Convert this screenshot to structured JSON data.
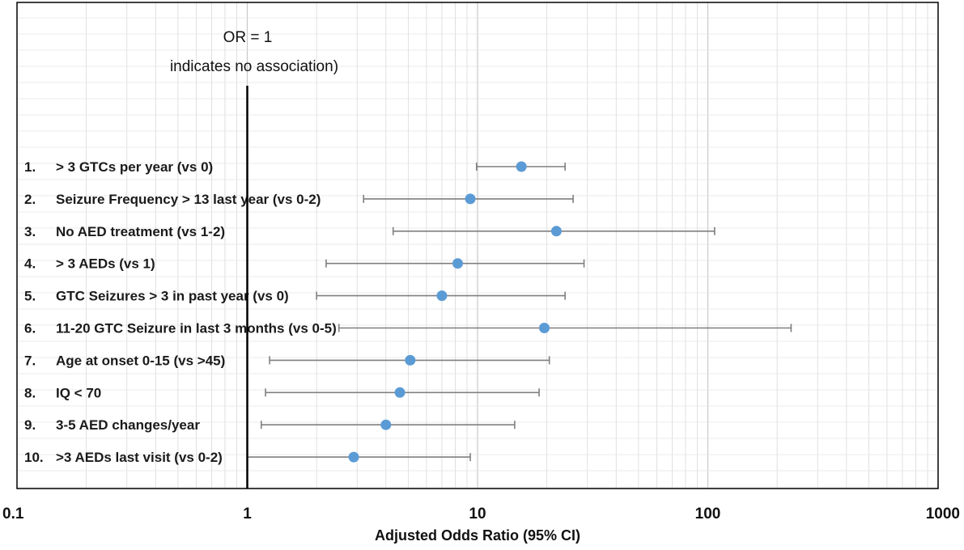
{
  "chart_data": {
    "type": "forest",
    "title": "",
    "xlabel": "Adjusted Odds Ratio (95% CI)",
    "xscale": "log",
    "xlim": [
      0.1,
      1000
    ],
    "xticks": [
      "0.1",
      "1",
      "10",
      "100",
      "1000"
    ],
    "reference_line": {
      "value": 1,
      "note_line1": "OR = 1",
      "note_line2": "indicates no association)"
    },
    "rows": [
      {
        "num": "1.",
        "label": "> 3 GTCs per year (vs 0)",
        "or": 15.5,
        "lower": 9.9,
        "upper": 24
      },
      {
        "num": "2.",
        "label": "Seizure Frequency > 13 last year (vs 0-2)",
        "or": 9.3,
        "lower": 3.2,
        "upper": 26
      },
      {
        "num": "3.",
        "label": "No AED treatment (vs 1-2)",
        "or": 22,
        "lower": 4.3,
        "upper": 107
      },
      {
        "num": "4.",
        "label": "> 3 AEDs (vs 1)",
        "or": 8.2,
        "lower": 2.2,
        "upper": 29
      },
      {
        "num": "5.",
        "label": "GTC Seizures > 3 in past year (vs 0)",
        "or": 7.0,
        "lower": 2.0,
        "upper": 24
      },
      {
        "num": "6.",
        "label": "11-20 GTC Seizure in last 3 months (vs 0-5)",
        "or": 19.5,
        "lower": 2.5,
        "upper": 230
      },
      {
        "num": "7.",
        "label": "Age at onset 0-15 (vs >45)",
        "or": 5.1,
        "lower": 1.25,
        "upper": 20.5
      },
      {
        "num": "8.",
        "label": "IQ < 70",
        "or": 4.6,
        "lower": 1.2,
        "upper": 18.5
      },
      {
        "num": "9.",
        "label": "3-5 AED changes/year",
        "or": 4.0,
        "lower": 1.15,
        "upper": 14.5
      },
      {
        "num": "10.",
        "label": ">3 AEDs last visit (vs 0-2)",
        "or": 2.9,
        "lower": 1.0,
        "upper": 9.3
      }
    ],
    "colors": {
      "point": "#5b9bd5",
      "whisker": "#7f7f7f",
      "reference": "#000000",
      "grid": "#d9d9d9"
    }
  }
}
